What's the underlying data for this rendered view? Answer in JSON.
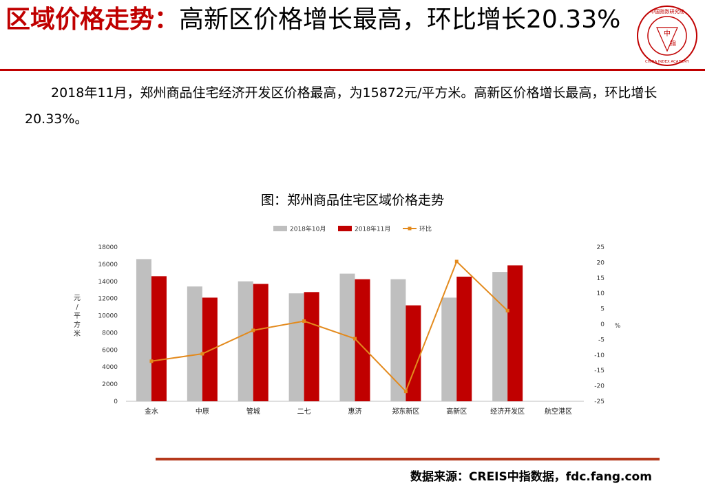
{
  "header": {
    "title_highlight": "区域价格走势",
    "title_sep": "：",
    "title_rest": "高新区价格增长最高，环比增长20.33%"
  },
  "logo": {
    "text_top": "中国指数研究院",
    "text_bottom": "CHINA INDEX ACADEMY",
    "center_top": "中",
    "center_bottom": "指"
  },
  "body_text": "2018年11月，郑州商品住宅经济开发区价格最高，为15872元/平方米。高新区价格增长最高，环比增长20.33%。",
  "chart_heading": "图：郑州商品住宅区域价格走势",
  "chart_data": {
    "type": "bar",
    "title": "图：郑州商品住宅区域价格走势",
    "categories": [
      "金水",
      "中原",
      "管城",
      "二七",
      "惠济",
      "郑东新区",
      "高新区",
      "经济开发区",
      "航空港区"
    ],
    "series": [
      {
        "name": "2018年10月",
        "type": "bar",
        "axis": "left",
        "color": "#bfbfbf",
        "values": [
          16600,
          13400,
          14000,
          12600,
          14900,
          14250,
          12100,
          15100,
          null
        ]
      },
      {
        "name": "2018年11月",
        "type": "bar",
        "axis": "left",
        "color": "#c00000",
        "values": [
          14600,
          12100,
          13700,
          12750,
          14250,
          11200,
          14550,
          15872,
          null
        ]
      },
      {
        "name": "环比",
        "type": "line",
        "axis": "right",
        "color": "#e38a1d",
        "values": [
          -12,
          -9.6,
          -2,
          1,
          -4.7,
          -21.8,
          20.33,
          4.4,
          null
        ]
      }
    ],
    "ylabel": "元/平方米",
    "y2label": "%",
    "ylim": [
      0,
      18000
    ],
    "yticks": [
      0,
      2000,
      4000,
      6000,
      8000,
      10000,
      12000,
      14000,
      16000,
      18000
    ],
    "y2lim": [
      -25,
      25
    ],
    "y2ticks": [
      25,
      20,
      15,
      10,
      5,
      0,
      -5,
      -10,
      -15,
      -20,
      -25
    ],
    "legend_position": "top",
    "grid": false
  },
  "footer": {
    "source": "数据来源：CREIS中指数据，fdc.fang.com"
  }
}
